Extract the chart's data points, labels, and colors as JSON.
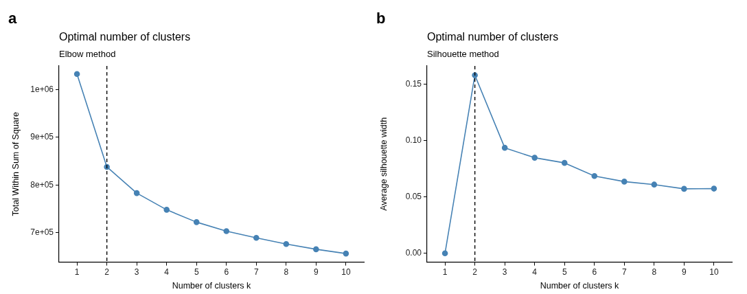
{
  "chart_data": [
    {
      "type": "line",
      "title": "Optimal number of clusters",
      "subtitle": "Elbow method",
      "xlabel": "Number of clusters k",
      "ylabel": "Total Within Sum of Square",
      "annotations": [
        "a"
      ],
      "x": [
        1,
        2,
        3,
        4,
        5,
        6,
        7,
        8,
        9,
        10
      ],
      "series": [
        {
          "color": "#4682b4",
          "values": [
            1033000,
            838000,
            783000,
            748000,
            722000,
            703000,
            689000,
            676000,
            665000,
            656000
          ]
        }
      ],
      "xlim": [
        0.4,
        10.6
      ],
      "xticks": [
        1,
        2,
        3,
        4,
        5,
        6,
        7,
        8,
        9,
        10
      ],
      "ylim": [
        638000,
        1050000
      ],
      "yticks": [
        {
          "value": 700000,
          "label": "7e+05"
        },
        {
          "value": 800000,
          "label": "8e+05"
        },
        {
          "value": 900000,
          "label": "9e+05"
        },
        {
          "value": 1000000,
          "label": "1e+06"
        }
      ],
      "ref_lines": [
        {
          "axis": "x",
          "value": 2,
          "color": "#000000",
          "line_style": "dashed"
        }
      ],
      "grid": false,
      "marker": "circle",
      "line_style": "solid"
    },
    {
      "type": "line",
      "title": "Optimal number of clusters",
      "subtitle": "Silhouette method",
      "xlabel": "Number of clusters k",
      "ylabel": "Average silhouette width",
      "annotations": [
        "b"
      ],
      "x": [
        1,
        2,
        3,
        4,
        5,
        6,
        7,
        8,
        9,
        10
      ],
      "series": [
        {
          "color": "#4682b4",
          "values": [
            0,
            0.158,
            0.0936,
            0.0848,
            0.0802,
            0.0686,
            0.0636,
            0.061,
            0.0572,
            0.0574
          ]
        }
      ],
      "xlim": [
        0.4,
        10.6
      ],
      "xticks": [
        1,
        2,
        3,
        4,
        5,
        6,
        7,
        8,
        9,
        10
      ],
      "ylim": [
        -0.0078,
        0.1662
      ],
      "yticks": [
        {
          "value": 0,
          "label": "0.00"
        },
        0.05,
        {
          "value": 0.1,
          "label": "0.10"
        },
        0.15
      ],
      "ref_lines": [
        {
          "axis": "x",
          "value": 2,
          "color": "#000000",
          "line_style": "dashed"
        }
      ],
      "grid": false,
      "marker": "circle",
      "line_style": "solid"
    }
  ]
}
